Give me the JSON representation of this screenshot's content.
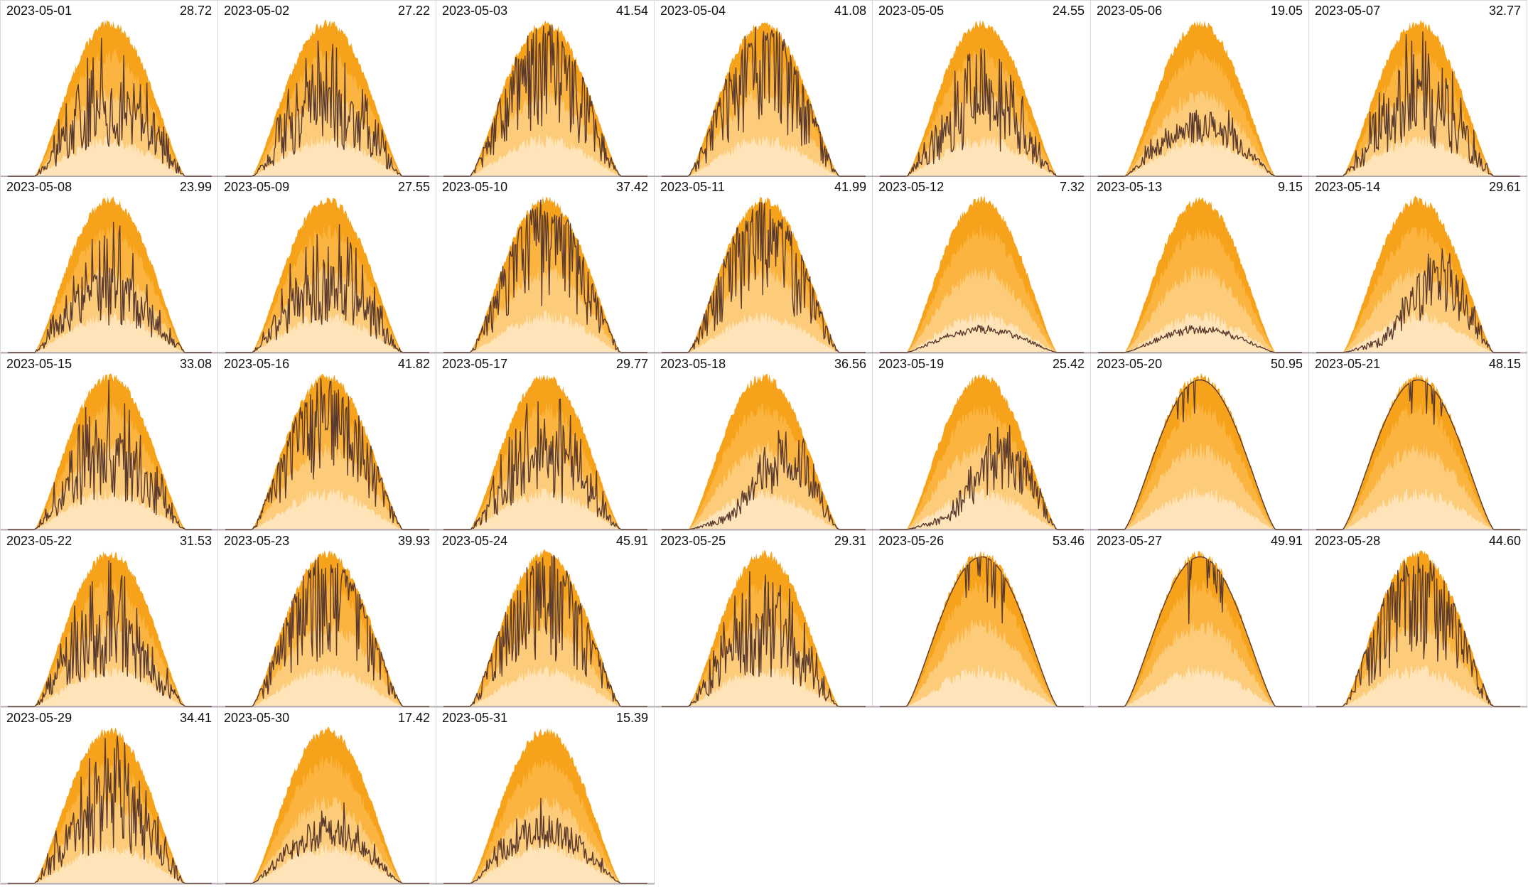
{
  "colors": {
    "band_outer": "#f6a21a",
    "band_mid": "#fbb43f",
    "band_inner": "#fdcc7a",
    "band_low": "#fee4b8",
    "actual_line": "#5a3a2e",
    "baseline": "#9a8c9c",
    "grid_border": "#d9d9d9"
  },
  "chart_data": {
    "type": "area",
    "layout": "small-multiples",
    "columns": 7,
    "x_range": [
      0,
      1
    ],
    "panels": [
      {
        "date": "2023-05-01",
        "total": "28.72",
        "style": "cloudy"
      },
      {
        "date": "2023-05-02",
        "total": "27.22",
        "style": "cloudy"
      },
      {
        "date": "2023-05-03",
        "total": "41.54",
        "style": "mixed"
      },
      {
        "date": "2023-05-04",
        "total": "41.08",
        "style": "mixed"
      },
      {
        "date": "2023-05-05",
        "total": "24.55",
        "style": "cloudy"
      },
      {
        "date": "2023-05-06",
        "total": "19.05",
        "style": "low"
      },
      {
        "date": "2023-05-07",
        "total": "32.77",
        "style": "cloudy"
      },
      {
        "date": "2023-05-08",
        "total": "23.99",
        "style": "cloudy"
      },
      {
        "date": "2023-05-09",
        "total": "27.55",
        "style": "cloudy"
      },
      {
        "date": "2023-05-10",
        "total": "37.42",
        "style": "mixed"
      },
      {
        "date": "2023-05-11",
        "total": "41.99",
        "style": "mixed"
      },
      {
        "date": "2023-05-12",
        "total": "7.32",
        "style": "overcast"
      },
      {
        "date": "2023-05-13",
        "total": "9.15",
        "style": "overcast"
      },
      {
        "date": "2023-05-14",
        "total": "29.61",
        "style": "late"
      },
      {
        "date": "2023-05-15",
        "total": "33.08",
        "style": "cloudy"
      },
      {
        "date": "2023-05-16",
        "total": "41.82",
        "style": "mixed"
      },
      {
        "date": "2023-05-17",
        "total": "29.77",
        "style": "cloudy"
      },
      {
        "date": "2023-05-18",
        "total": "36.56",
        "style": "late"
      },
      {
        "date": "2023-05-19",
        "total": "25.42",
        "style": "late"
      },
      {
        "date": "2023-05-20",
        "total": "50.95",
        "style": "clear"
      },
      {
        "date": "2023-05-21",
        "total": "48.15",
        "style": "clear"
      },
      {
        "date": "2023-05-22",
        "total": "31.53",
        "style": "cloudy"
      },
      {
        "date": "2023-05-23",
        "total": "39.93",
        "style": "mixed"
      },
      {
        "date": "2023-05-24",
        "total": "45.91",
        "style": "mixed"
      },
      {
        "date": "2023-05-25",
        "total": "29.31",
        "style": "cloudy"
      },
      {
        "date": "2023-05-26",
        "total": "53.46",
        "style": "clear"
      },
      {
        "date": "2023-05-27",
        "total": "49.91",
        "style": "clear"
      },
      {
        "date": "2023-05-28",
        "total": "44.60",
        "style": "mixed"
      },
      {
        "date": "2023-05-29",
        "total": "34.41",
        "style": "cloudy"
      },
      {
        "date": "2023-05-30",
        "total": "17.42",
        "style": "low"
      },
      {
        "date": "2023-05-31",
        "total": "15.39",
        "style": "low"
      }
    ]
  }
}
